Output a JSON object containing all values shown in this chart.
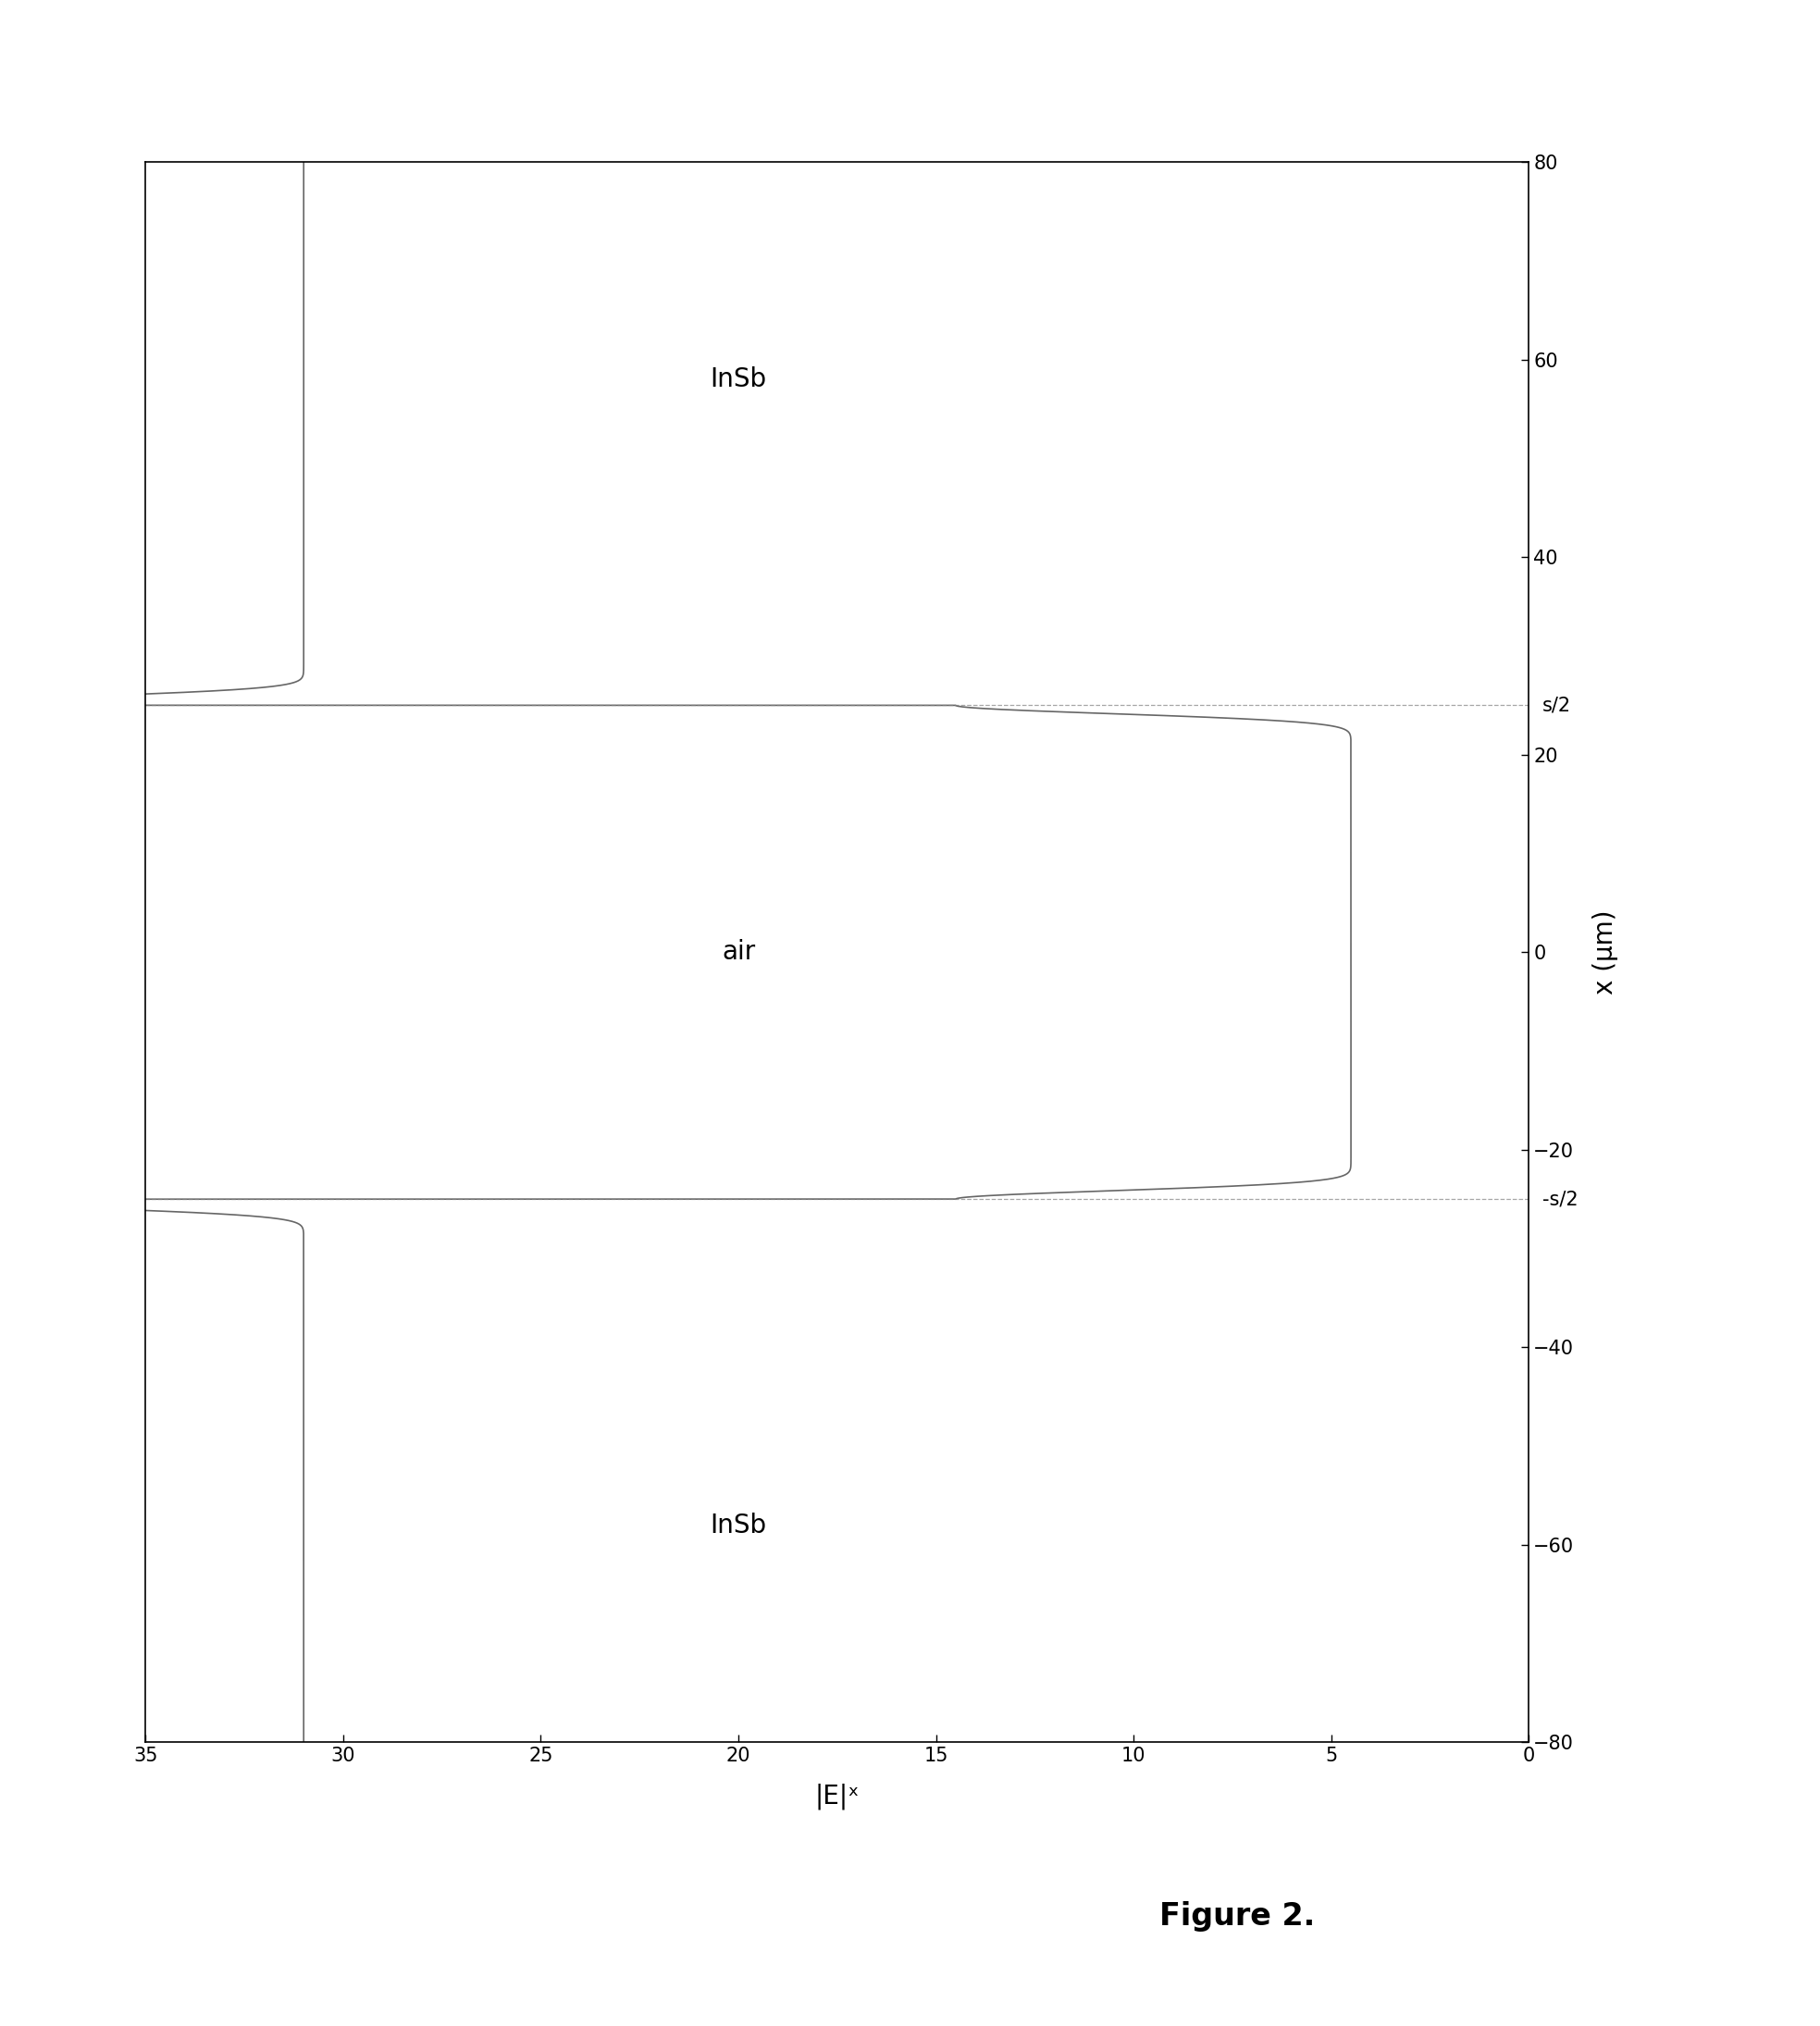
{
  "xlabel": "x (μm)",
  "ylabel": "|E|ˣ",
  "xlim_plot": [
    -80,
    80
  ],
  "ylim_plot": [
    0,
    35
  ],
  "yticks_plot": [
    0,
    5,
    10,
    15,
    20,
    25,
    30,
    35
  ],
  "xticks_plot": [
    -80,
    -60,
    -40,
    -20,
    0,
    20,
    40,
    60,
    80
  ],
  "label_insb_left": "InSb",
  "label_air": "air",
  "label_insb_right": "InSb",
  "label_sm_left": "-s/2",
  "label_sm_right": "s/2",
  "s_half": 25,
  "insb_value": 31.0,
  "air_value": 4.5,
  "spike_height": 10.0,
  "spike_sigma": 1.2,
  "line_color": "#666666",
  "background_color": "#ffffff",
  "figure_caption": "Figure 2."
}
